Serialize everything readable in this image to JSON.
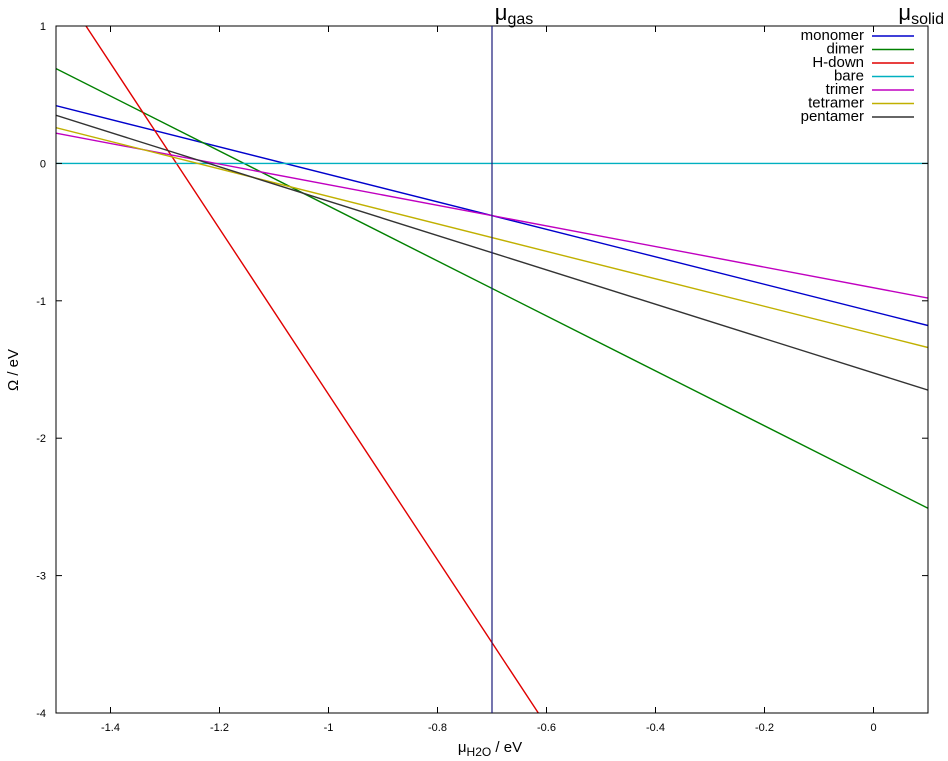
{
  "chart_data": {
    "type": "line",
    "xlabel": {
      "main": "μ",
      "sub": "H2O",
      "tail": " / eV"
    },
    "ylabel": "Ω / eV",
    "xlim": [
      -1.5,
      0.1
    ],
    "ylim": [
      -4,
      1
    ],
    "x_ticks": [
      -1.4,
      -1.2,
      -1,
      -0.8,
      -0.6,
      -0.4,
      -0.2,
      0
    ],
    "x_tick_labels": [
      "-1.4",
      "-1.2",
      "-1",
      "-0.8",
      "-0.6",
      "-0.4",
      "-0.2",
      "0"
    ],
    "y_ticks": [
      1,
      0,
      -1,
      -2,
      -3,
      -4
    ],
    "y_tick_labels": [
      "1",
      "0",
      "-1",
      "-2",
      "-3",
      "-4"
    ],
    "grid": false,
    "legend_position": "top-right",
    "series": [
      {
        "name": "monomer",
        "color": "#0000cc",
        "x": [
          -1.5,
          0.1
        ],
        "y": [
          0.42,
          -1.18
        ]
      },
      {
        "name": "dimer",
        "color": "#008000",
        "x": [
          -1.5,
          0.1
        ],
        "y": [
          0.69,
          -2.51
        ]
      },
      {
        "name": "H-down",
        "color": "#e00000",
        "x": [
          -1.445,
          -0.615
        ],
        "y": [
          1.0,
          -4.0
        ]
      },
      {
        "name": "bare",
        "color": "#00b0c0",
        "x": [
          -1.5,
          0.1
        ],
        "y": [
          0.0,
          0.0
        ]
      },
      {
        "name": "trimer",
        "color": "#c000c0",
        "x": [
          -1.5,
          0.1
        ],
        "y": [
          0.22,
          -0.98
        ]
      },
      {
        "name": "tetramer",
        "color": "#c0b000",
        "x": [
          -1.5,
          0.1
        ],
        "y": [
          0.26,
          -1.34
        ]
      },
      {
        "name": "pentamer",
        "color": "#333333",
        "x": [
          -1.5,
          0.1
        ],
        "y": [
          0.35,
          -1.65
        ]
      }
    ],
    "markers": [
      {
        "label_main": "μ",
        "label_sub": "gas",
        "x": -0.7,
        "color": "#1a1a7a"
      },
      {
        "label_main": "μ",
        "label_sub": "solid",
        "x": 0.1,
        "color": "#000000"
      }
    ]
  }
}
